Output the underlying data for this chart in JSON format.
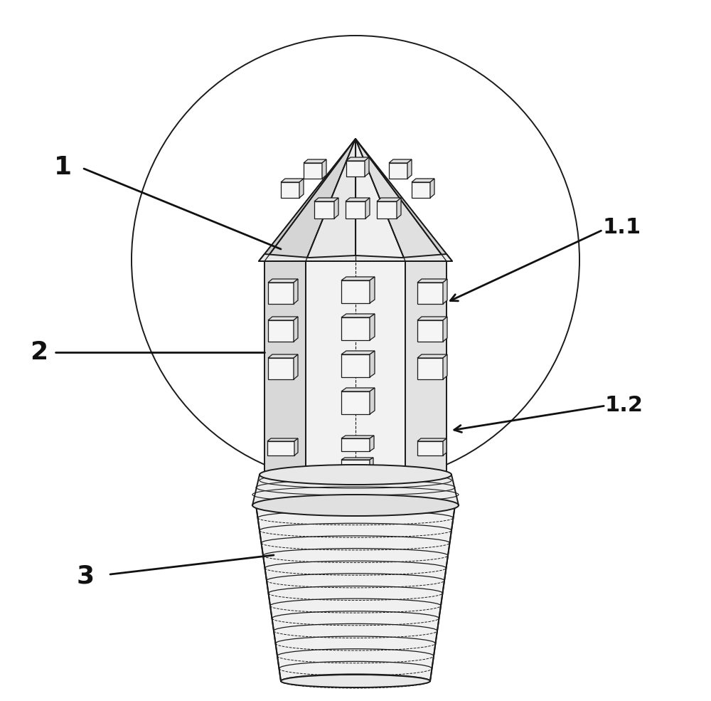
{
  "bg_color": "#ffffff",
  "line_color": "#1a1a1a",
  "label_1": "1",
  "label_2": "2",
  "label_3": "3",
  "label_11": "1.1",
  "label_12": "1.2",
  "label_fontsize": 26,
  "annot_fontsize": 22,
  "lw_main": 1.4,
  "lw_thin": 0.9,
  "lw_annot": 2.0
}
